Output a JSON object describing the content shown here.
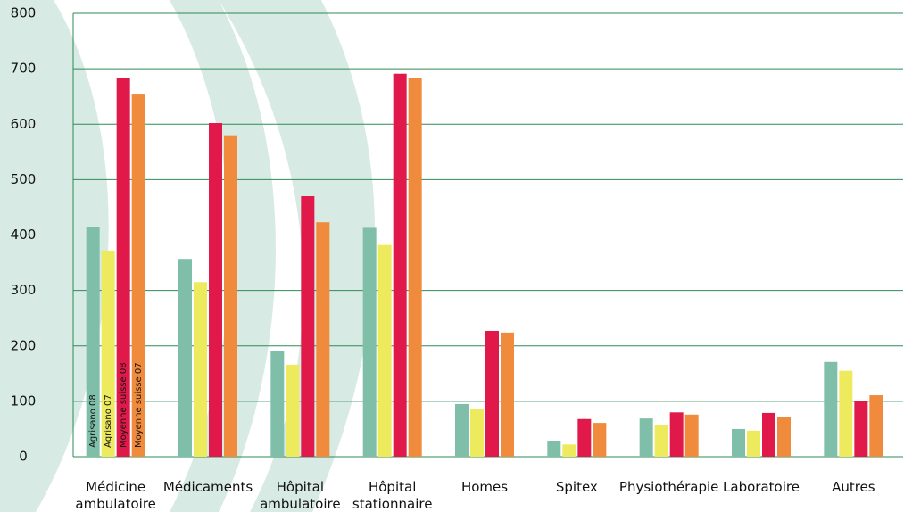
{
  "chart_data": {
    "type": "bar",
    "categories": [
      "Médicine ambulatoire",
      "Médicaments",
      "Hôpital ambulatoire",
      "Hôpital stationnaire",
      "Homes",
      "Spitex",
      "Physiothérapie",
      "Laboratoire",
      "Autres"
    ],
    "series": [
      {
        "name": "Agrisano 08",
        "color": "#7fbfa9",
        "values": [
          414,
          357,
          190,
          413,
          95,
          29,
          69,
          50,
          171
        ]
      },
      {
        "name": "Agrisano 07",
        "color": "#eeea5e",
        "values": [
          372,
          315,
          166,
          382,
          87,
          22,
          58,
          47,
          155
        ]
      },
      {
        "name": "Moyenne suisse 08",
        "color": "#e0194a",
        "values": [
          683,
          602,
          470,
          691,
          227,
          68,
          80,
          79,
          101
        ]
      },
      {
        "name": "Moyenne suisse 07",
        "color": "#f08a3c",
        "values": [
          655,
          580,
          423,
          683,
          224,
          61,
          76,
          71,
          111
        ]
      }
    ],
    "ylim": [
      0,
      800
    ],
    "yticks": [
      0,
      100,
      200,
      300,
      400,
      500,
      600,
      700,
      800
    ],
    "grid": true
  }
}
